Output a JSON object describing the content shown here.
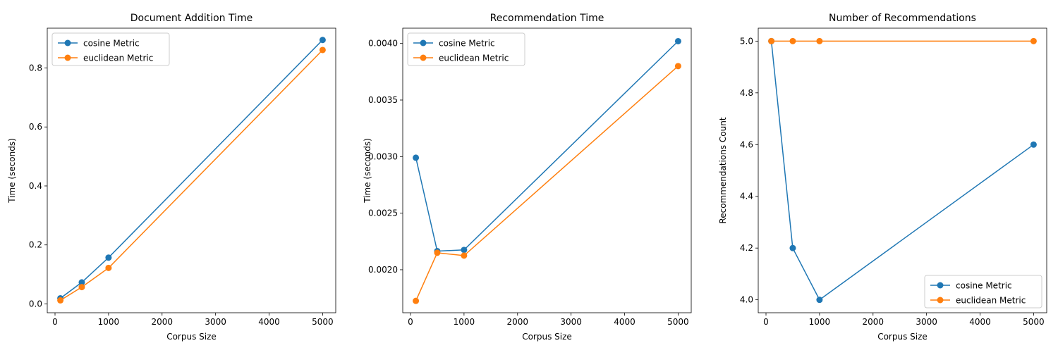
{
  "colors": {
    "cosine": "#1f77b4",
    "euclidean": "#ff7f0e"
  },
  "chart_data": [
    {
      "type": "line",
      "title": "Document Addition Time",
      "xlabel": "Corpus Size",
      "ylabel": "Time (seconds)",
      "x": [
        100,
        500,
        1000,
        5000
      ],
      "series": [
        {
          "name": "cosine Metric",
          "color": "#1f77b4",
          "values": [
            0.019,
            0.073,
            0.157,
            0.895
          ]
        },
        {
          "name": "euclidean Metric",
          "color": "#ff7f0e",
          "values": [
            0.012,
            0.057,
            0.122,
            0.861
          ]
        }
      ],
      "xlim": [
        -145,
        5245
      ],
      "ylim": [
        -0.03,
        0.935
      ],
      "xticks": [
        0,
        1000,
        2000,
        3000,
        4000,
        5000
      ],
      "yticks": [
        0.0,
        0.2,
        0.4,
        0.6,
        0.8
      ],
      "ytick_decimals": 1,
      "legend": "upper left",
      "grid": false
    },
    {
      "type": "line",
      "title": "Recommendation Time",
      "xlabel": "Corpus Size",
      "ylabel": "Time (seconds)",
      "x": [
        100,
        500,
        1000,
        5000
      ],
      "series": [
        {
          "name": "cosine Metric",
          "color": "#1f77b4",
          "values": [
            0.00299,
            0.002165,
            0.002175,
            0.00402
          ]
        },
        {
          "name": "euclidean Metric",
          "color": "#ff7f0e",
          "values": [
            0.001725,
            0.00215,
            0.002125,
            0.0038
          ]
        }
      ],
      "xlim": [
        -145,
        5245
      ],
      "ylim": [
        0.00162,
        0.004135
      ],
      "xticks": [
        0,
        1000,
        2000,
        3000,
        4000,
        5000
      ],
      "yticks": [
        0.002,
        0.0025,
        0.003,
        0.0035,
        0.004
      ],
      "ytick_decimals": 4,
      "legend": "upper left",
      "grid": false
    },
    {
      "type": "line",
      "title": "Number of Recommendations",
      "xlabel": "Corpus Size",
      "ylabel": "Recommendations Count",
      "x": [
        100,
        500,
        1000,
        5000
      ],
      "series": [
        {
          "name": "cosine Metric",
          "color": "#1f77b4",
          "values": [
            5.0,
            4.2,
            4.0,
            4.6
          ]
        },
        {
          "name": "euclidean Metric",
          "color": "#ff7f0e",
          "values": [
            5.0,
            5.0,
            5.0,
            5.0
          ]
        }
      ],
      "xlim": [
        -145,
        5245
      ],
      "ylim": [
        3.95,
        5.05
      ],
      "xticks": [
        0,
        1000,
        2000,
        3000,
        4000,
        5000
      ],
      "yticks": [
        4.0,
        4.2,
        4.4,
        4.6,
        4.8,
        5.0
      ],
      "ytick_decimals": 1,
      "legend": "lower right",
      "grid": false
    }
  ]
}
